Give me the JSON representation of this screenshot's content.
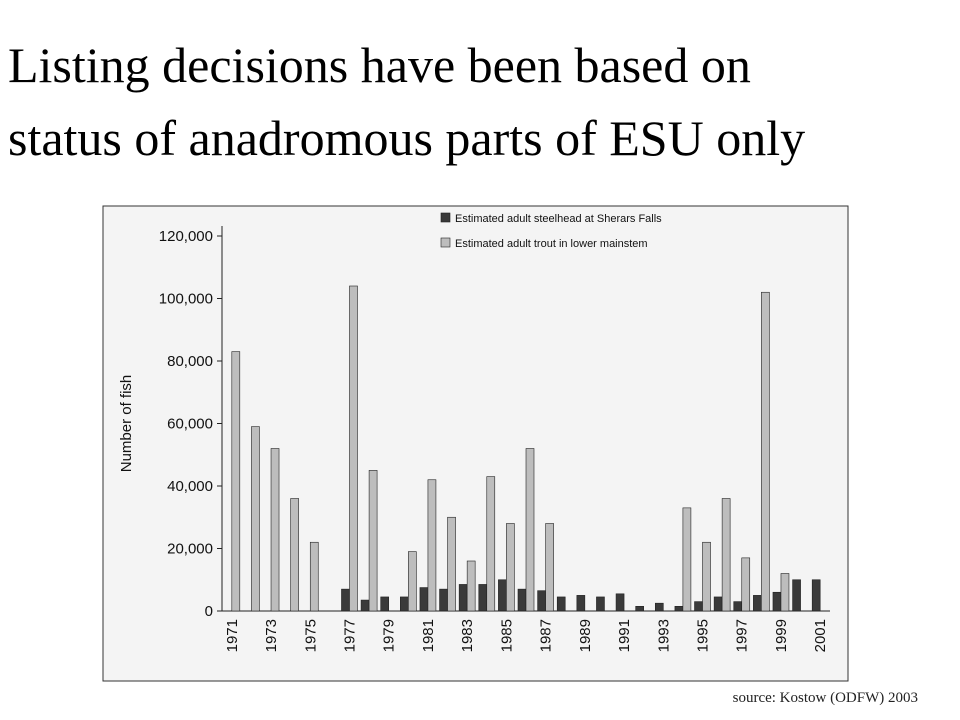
{
  "title_lines": [
    "Listing decisions have been based on",
    "status of anadromous parts of ESU only"
  ],
  "source": "source:  Kostow (ODFW) 2003",
  "chart_data": {
    "type": "bar",
    "y_label": "Number of fish",
    "categories": [
      "1971",
      null,
      "1973",
      null,
      "1975",
      null,
      "1977",
      null,
      "1979",
      null,
      "1981",
      null,
      "1983",
      null,
      "1985",
      null,
      "1987",
      null,
      "1989",
      null,
      "1991",
      null,
      "1993",
      null,
      "1995",
      null,
      "1997",
      null,
      "1999",
      null,
      "2001"
    ],
    "series": [
      {
        "name": "Estimated adult steelhead at Sherars Falls",
        "color": "#3a3a3a",
        "values": [
          null,
          null,
          null,
          null,
          null,
          null,
          7000,
          3500,
          4500,
          4500,
          7500,
          7000,
          8500,
          8500,
          10000,
          7000,
          6500,
          4500,
          5000,
          4500,
          5500,
          1500,
          2500,
          1500,
          3000,
          4500,
          3000,
          5000,
          6000,
          10000,
          10000
        ]
      },
      {
        "name": "Estimated adult trout in lower mainstem",
        "color": "#bdbdbd",
        "values": [
          83000,
          59000,
          52000,
          36000,
          22000,
          null,
          104000,
          45000,
          null,
          19000,
          42000,
          30000,
          16000,
          43000,
          28000,
          52000,
          28000,
          null,
          null,
          null,
          null,
          null,
          null,
          33000,
          22000,
          36000,
          17000,
          102000,
          12000,
          null,
          null
        ]
      }
    ],
    "ylim": [
      0,
      120000
    ],
    "yticks": [
      0,
      {
        "value": 20000,
        "label": "20,000"
      },
      {
        "value": 40000,
        "label": "40,000"
      },
      {
        "value": 60000,
        "label": "60,000"
      },
      {
        "value": 80000,
        "label": "80,000"
      },
      {
        "value": 100000,
        "label": "100,000"
      },
      {
        "value": 120000,
        "label": "120,000"
      }
    ],
    "legend": "top"
  }
}
